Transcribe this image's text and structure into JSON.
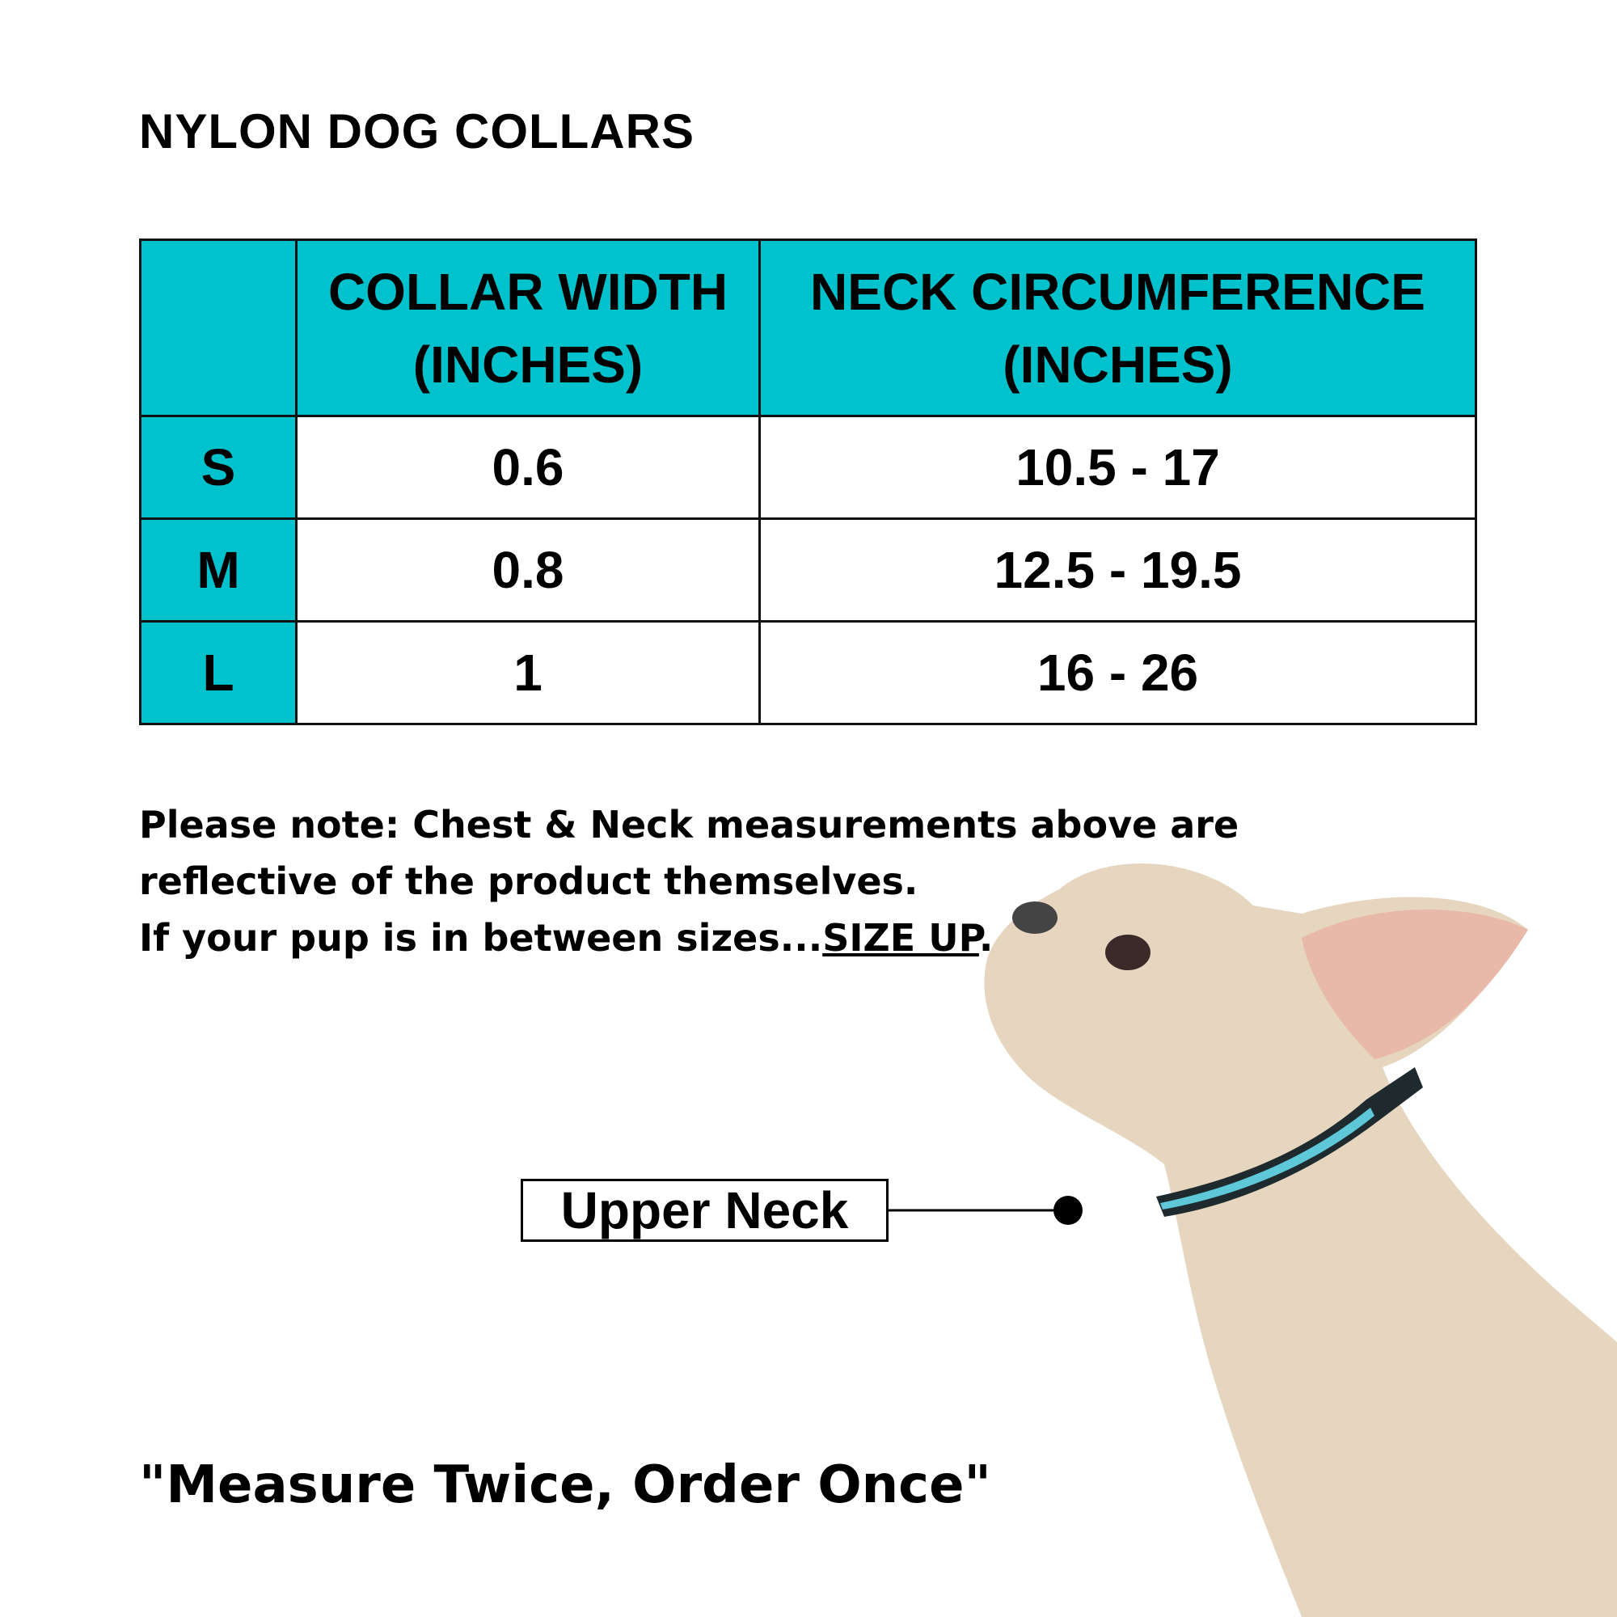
{
  "title": "NYLON DOG COLLARS",
  "table": {
    "headers": [
      "",
      "COLLAR WIDTH (INCHES)",
      "NECK CIRCUMFERENCE (INCHES)"
    ],
    "rows": [
      {
        "size": "S",
        "width": "0.6",
        "neck": "10.5 - 17"
      },
      {
        "size": "M",
        "width": "0.8",
        "neck": "12.5 - 19.5"
      },
      {
        "size": "L",
        "width": "1",
        "neck": "16 - 26"
      }
    ]
  },
  "note": {
    "line1": "Please note:  Chest & Neck measurements above are",
    "line2": "reflective of the product themselves.",
    "line3_prefix": "If your pup is in between sizes...",
    "line3_emphasis": "SIZE UP",
    "line3_suffix": "."
  },
  "callout": "Upper Neck",
  "quote": "\"Measure Twice, Order Once\"",
  "colors": {
    "accent": "#00c2cd",
    "collar": "#5ec8d8",
    "dog": "#e6d6bf"
  }
}
